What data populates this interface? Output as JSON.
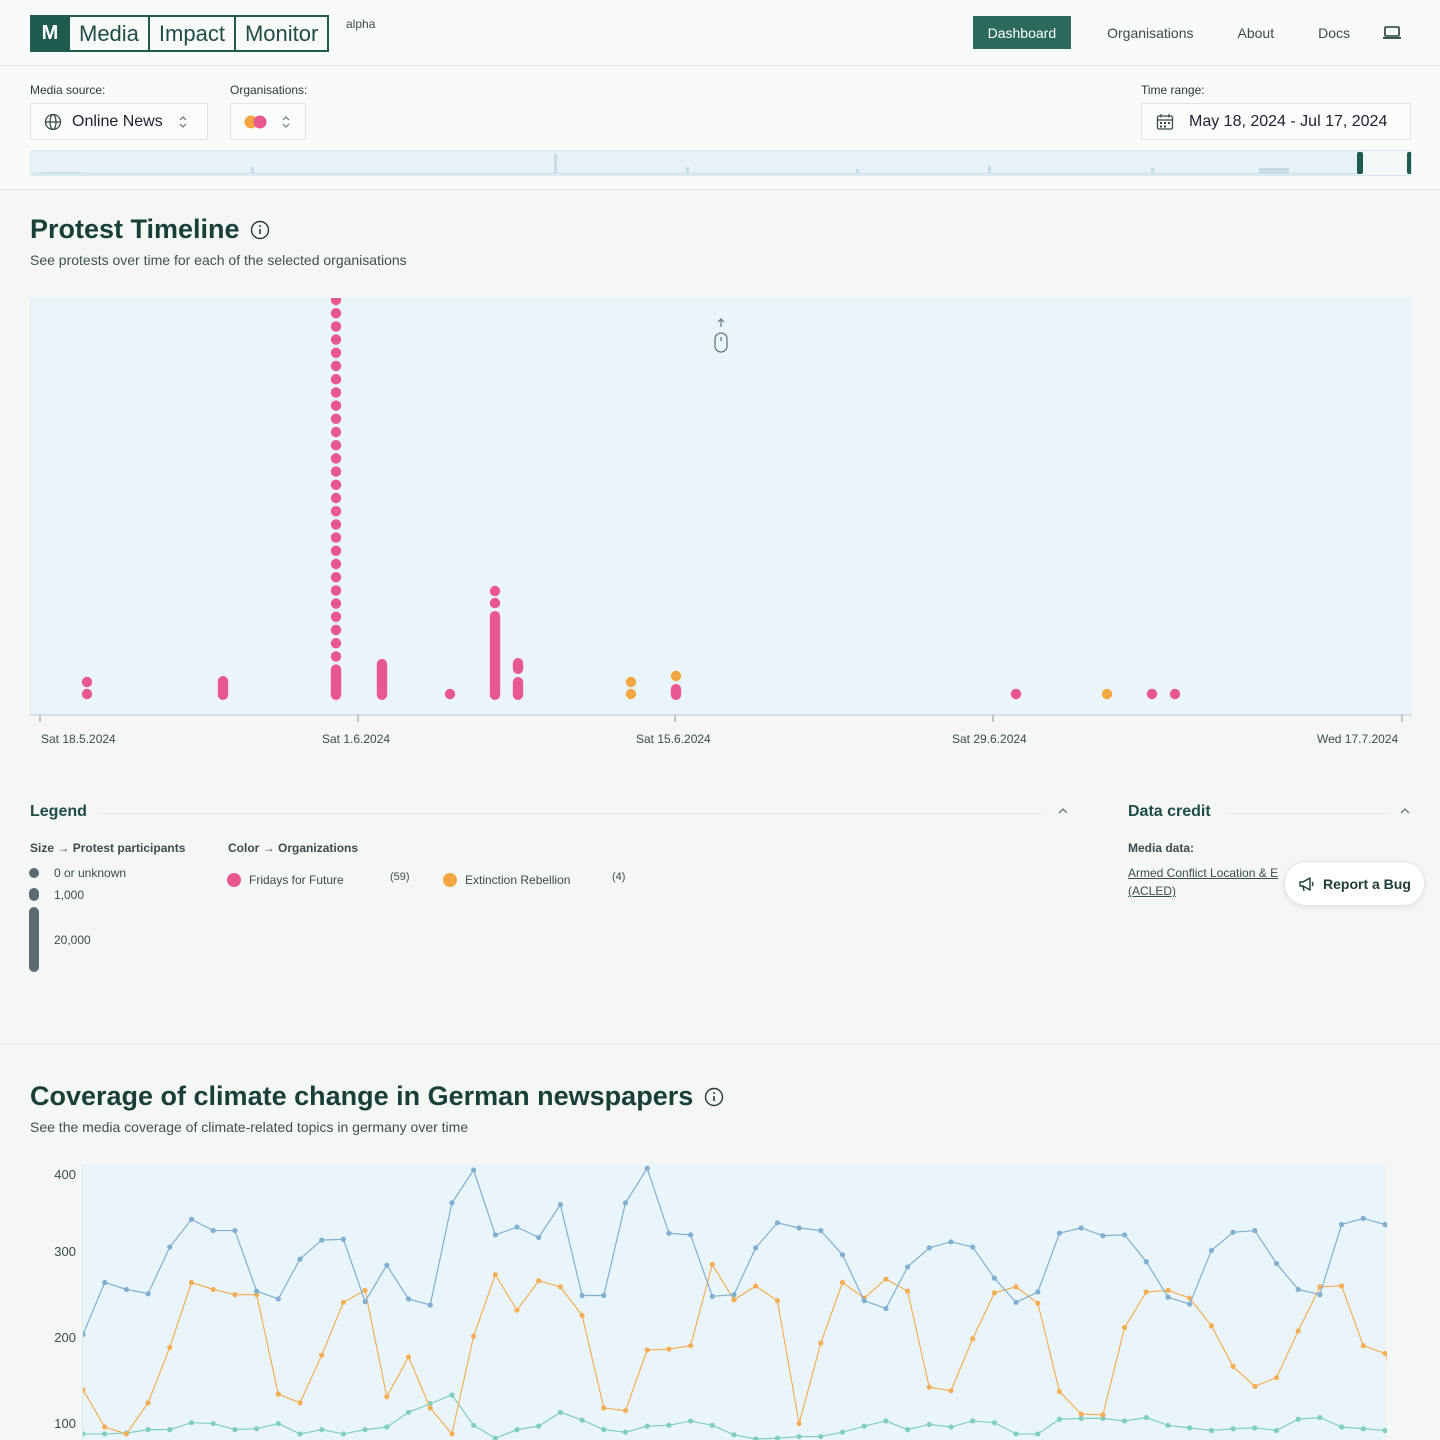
{
  "header": {
    "logo_mark": "M",
    "logo_words": [
      "Media",
      "Impact",
      "Monitor"
    ],
    "badge": "alpha",
    "nav": [
      {
        "label": "Dashboard",
        "active": true
      },
      {
        "label": "Organisations",
        "active": false
      },
      {
        "label": "About",
        "active": false
      },
      {
        "label": "Docs",
        "active": false
      }
    ],
    "theme_icon": "laptop-icon"
  },
  "filters": {
    "media_source_label": "Media source:",
    "media_source_value": "Online News",
    "organisations_label": "Organisations:",
    "time_range_label": "Time range:",
    "time_range_value": "May 18, 2024 - Jul 17, 2024"
  },
  "timeline": {
    "title": "Protest Timeline",
    "subtitle": "See protests over time for each of the selected organisations",
    "ticks": [
      "Sat 18.5.2024",
      "Sat 1.6.2024",
      "Sat 15.6.2024",
      "Sat 29.6.2024",
      "Wed 17.7.2024"
    ],
    "colors": {
      "fff": "#e8578f",
      "xr": "#f3a742"
    }
  },
  "legend": {
    "title": "Legend",
    "size_label": "Size",
    "size_target": "Protest participants",
    "sizes": [
      "0 or unknown",
      "1,000",
      "20,000"
    ],
    "color_label": "Color",
    "color_target": "Organizations",
    "orgs": [
      {
        "name": "Fridays for Future",
        "count": "(59)",
        "color": "#e8578f"
      },
      {
        "name": "Extinction Rebellion",
        "count": "(4)",
        "color": "#f3a742"
      }
    ]
  },
  "credit": {
    "title": "Data credit",
    "media_label": "Media data:",
    "link_line1": "Armed Conflict Location & E",
    "link_line2": "(ACLED)"
  },
  "bug_button": "Report a Bug",
  "coverage": {
    "title": "Coverage of climate change in German newspapers",
    "subtitle": "See the media coverage of climate-related topics in germany over time",
    "yticks": [
      "400",
      "300",
      "200",
      "100"
    ],
    "colors": {
      "blue": "#7fb0cf",
      "orange": "#f4ae56",
      "teal": "#7fcfbf"
    }
  }
}
